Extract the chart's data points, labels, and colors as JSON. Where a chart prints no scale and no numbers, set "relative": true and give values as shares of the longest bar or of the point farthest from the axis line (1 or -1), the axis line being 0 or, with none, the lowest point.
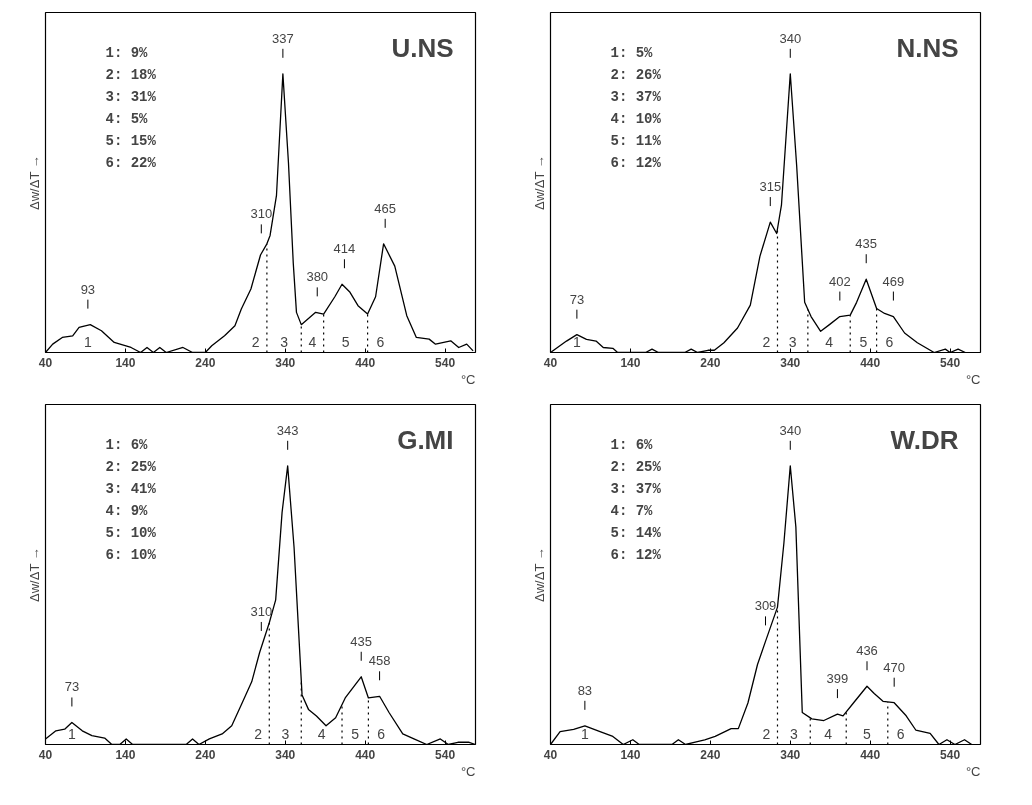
{
  "chart_data": [
    {
      "type": "line",
      "title": "U.NS",
      "xlabel": "°C",
      "ylabel": "Δw/ΔT →",
      "relative": true,
      "xlim": [
        40,
        578
      ],
      "xticks": [
        40,
        140,
        240,
        340,
        440,
        540
      ],
      "tick_labels": "x",
      "grid": false,
      "marker": "none",
      "line_style": "solid",
      "series": [
        {
          "color": "#000000",
          "x": [
            40,
            49,
            61,
            74,
            82,
            96,
            110,
            126,
            147,
            159,
            167,
            175,
            183,
            191,
            212,
            224,
            240,
            248,
            264,
            277,
            285,
            297,
            309,
            317,
            321,
            329,
            337,
            344,
            350,
            354,
            360,
            378,
            388,
            402,
            411,
            421,
            431,
            443,
            453,
            463,
            477,
            492,
            504,
            520,
            528,
            547,
            557,
            567,
            575
          ],
          "values": [
            0,
            0.03,
            0.054,
            0.06,
            0.09,
            0.1,
            0.078,
            0.036,
            0.018,
            0,
            0.018,
            0,
            0.018,
            0,
            0.018,
            0,
            0,
            0.024,
            0.06,
            0.096,
            0.156,
            0.228,
            0.35,
            0.39,
            0.42,
            0.564,
            1.0,
            0.68,
            0.32,
            0.144,
            0.1,
            0.144,
            0.138,
            0.2,
            0.245,
            0.216,
            0.168,
            0.138,
            0.2,
            0.39,
            0.31,
            0.132,
            0.054,
            0.048,
            0.03,
            0.042,
            0.018,
            0.03,
            0.006
          ]
        }
      ],
      "ref_lines": [
        {
          "axis": "x",
          "value": 317,
          "line_style": "dotted"
        },
        {
          "axis": "x",
          "value": 360,
          "line_style": "dotted"
        },
        {
          "axis": "x",
          "value": 388,
          "line_style": "dotted"
        },
        {
          "axis": "x",
          "value": 443,
          "line_style": "dotted"
        }
      ],
      "annotations": [
        "1:   9%",
        "2:  18%",
        "3:  31%",
        "4:   5%",
        "5:  15%",
        "6:  22%",
        {
          "text": "93",
          "x": 93,
          "y": 0.1
        },
        {
          "text": "310",
          "x": 310,
          "y": 0.37
        },
        {
          "text": "337",
          "x": 337,
          "y": 1.0
        },
        {
          "text": "380",
          "x": 380,
          "y": 0.144
        },
        {
          "text": "414",
          "x": 414,
          "y": 0.245
        },
        {
          "text": "465",
          "x": 465,
          "y": 0.39
        },
        "1",
        "2",
        "3",
        "4",
        "5",
        "6"
      ]
    },
    {
      "type": "line",
      "title": "N.NS",
      "xlabel": "°C",
      "ylabel": "Δw/ΔT →",
      "relative": true,
      "xlim": [
        40,
        578
      ],
      "xticks": [
        40,
        140,
        240,
        340,
        440,
        540
      ],
      "tick_labels": "x",
      "grid": false,
      "marker": "none",
      "line_style": "solid",
      "series": [
        {
          "color": "#000000",
          "x": [
            40,
            60,
            73,
            85,
            97,
            106,
            118,
            124,
            159,
            167,
            175,
            208,
            216,
            224,
            237,
            245,
            257,
            274,
            290,
            302,
            315,
            323,
            329,
            340,
            348,
            358,
            366,
            378,
            389,
            402,
            415,
            423,
            435,
            448,
            458,
            469,
            483,
            499,
            520,
            534,
            540,
            550,
            559
          ],
          "values": [
            0,
            0.041,
            0.064,
            0.047,
            0.041,
            0.018,
            0.015,
            0,
            0,
            0.012,
            0,
            0,
            0.012,
            0,
            0.008,
            0.008,
            0.035,
            0.088,
            0.17,
            0.345,
            0.468,
            0.427,
            0.53,
            1.0,
            0.67,
            0.18,
            0.129,
            0.076,
            0.1,
            0.129,
            0.134,
            0.18,
            0.263,
            0.158,
            0.14,
            0.129,
            0.07,
            0.035,
            0,
            0.012,
            0,
            0.012,
            0
          ]
        }
      ],
      "ref_lines": [
        {
          "axis": "x",
          "value": 324,
          "line_style": "dotted"
        },
        {
          "axis": "x",
          "value": 362,
          "line_style": "dotted"
        },
        {
          "axis": "x",
          "value": 415,
          "line_style": "dotted"
        },
        {
          "axis": "x",
          "value": 448,
          "line_style": "dotted"
        }
      ],
      "annotations": [
        "1:   5%",
        "2:  26%",
        "3:  37%",
        "4:  10%",
        "5:  11%",
        "6:  12%",
        {
          "text": "73",
          "x": 73,
          "y": 0.064
        },
        {
          "text": "315",
          "x": 315,
          "y": 0.468
        },
        {
          "text": "340",
          "x": 340,
          "y": 1.0
        },
        {
          "text": "402",
          "x": 402,
          "y": 0.129
        },
        {
          "text": "435",
          "x": 435,
          "y": 0.263
        },
        {
          "text": "469",
          "x": 469,
          "y": 0.129
        },
        "1",
        "2",
        "3",
        "4",
        "5",
        "6"
      ]
    },
    {
      "type": "line",
      "title": "G.MI",
      "xlabel": "°C",
      "ylabel": "Δw/ΔT →",
      "relative": true,
      "xlim": [
        40,
        578
      ],
      "xticks": [
        40,
        140,
        240,
        340,
        440,
        540
      ],
      "tick_labels": "x",
      "grid": false,
      "marker": "none",
      "line_style": "solid",
      "series": [
        {
          "color": "#000000",
          "x": [
            40,
            53,
            64,
            73,
            86,
            98,
            114,
            123,
            133,
            141,
            149,
            216,
            224,
            232,
            245,
            261,
            273,
            285,
            298,
            308,
            320,
            328,
            336,
            343,
            351,
            361,
            369,
            379,
            391,
            403,
            415,
            435,
            444,
            458,
            470,
            487,
            501,
            517,
            534,
            544,
            556,
            570,
            578
          ],
          "values": [
            0.02,
            0.049,
            0.055,
            0.079,
            0.049,
            0.032,
            0.023,
            0,
            0,
            0.02,
            0,
            0,
            0.02,
            0,
            0.02,
            0.038,
            0.067,
            0.143,
            0.225,
            0.331,
            0.437,
            0.519,
            0.833,
            1.0,
            0.707,
            0.178,
            0.126,
            0.102,
            0.067,
            0.096,
            0.167,
            0.243,
            0.167,
            0.173,
            0.114,
            0.038,
            0.02,
            0,
            0.02,
            0,
            0.008,
            0.008,
            0
          ]
        }
      ],
      "ref_lines": [
        {
          "axis": "x",
          "value": 320,
          "line_style": "dotted"
        },
        {
          "axis": "x",
          "value": 360,
          "line_style": "dotted"
        },
        {
          "axis": "x",
          "value": 411,
          "line_style": "dotted"
        },
        {
          "axis": "x",
          "value": 444,
          "line_style": "dotted"
        }
      ],
      "annotations": [
        "1:   6%",
        "2:  25%",
        "3:  41%",
        "4:   9%",
        "5:  10%",
        "6:  10%",
        {
          "text": "73",
          "x": 73,
          "y": 0.079
        },
        {
          "text": "310",
          "x": 310,
          "y": 0.35
        },
        {
          "text": "343",
          "x": 343,
          "y": 1.0
        },
        {
          "text": "435",
          "x": 435,
          "y": 0.243
        },
        {
          "text": "458",
          "x": 458,
          "y": 0.173
        },
        "1",
        "2",
        "3",
        "4",
        "5",
        "6"
      ]
    },
    {
      "type": "line",
      "title": "W.DR",
      "xlabel": "°C",
      "ylabel": "Δw/ΔT →",
      "relative": true,
      "xlim": [
        40,
        578
      ],
      "xticks": [
        40,
        140,
        240,
        340,
        440,
        540
      ],
      "tick_labels": "x",
      "grid": false,
      "marker": "none",
      "line_style": "solid",
      "series": [
        {
          "color": "#000000",
          "x": [
            40,
            52,
            69,
            83,
            102,
            118,
            131,
            143,
            151,
            192,
            200,
            209,
            225,
            233,
            246,
            266,
            275,
            287,
            299,
            309,
            324,
            332,
            340,
            347,
            355,
            367,
            382,
            399,
            406,
            419,
            436,
            445,
            456,
            470,
            485,
            497,
            515,
            526,
            536,
            546,
            558,
            567
          ],
          "values": [
            0,
            0.046,
            0.054,
            0.067,
            0.046,
            0.029,
            0,
            0.017,
            0,
            0,
            0.017,
            0,
            0.011,
            0.017,
            0.029,
            0.057,
            0.057,
            0.149,
            0.287,
            0.37,
            0.493,
            0.722,
            1.0,
            0.78,
            0.115,
            0.092,
            0.086,
            0.109,
            0.103,
            0.149,
            0.209,
            0.183,
            0.155,
            0.15,
            0.103,
            0.052,
            0.04,
            0,
            0.017,
            0,
            0.017,
            0
          ]
        }
      ],
      "ref_lines": [
        {
          "axis": "x",
          "value": 324,
          "line_style": "dotted"
        },
        {
          "axis": "x",
          "value": 365,
          "line_style": "dotted"
        },
        {
          "axis": "x",
          "value": 410,
          "line_style": "dotted"
        },
        {
          "axis": "x",
          "value": 462,
          "line_style": "dotted"
        }
      ],
      "annotations": [
        "1:   6%",
        "2:  25%",
        "3:  37%",
        "4:   7%",
        "5:  14%",
        "6:  12%",
        {
          "text": "83",
          "x": 83,
          "y": 0.067
        },
        {
          "text": "309",
          "x": 309,
          "y": 0.37
        },
        {
          "text": "340",
          "x": 340,
          "y": 1.0
        },
        {
          "text": "399",
          "x": 399,
          "y": 0.109
        },
        {
          "text": "436",
          "x": 436,
          "y": 0.209
        },
        {
          "text": "470",
          "x": 470,
          "y": 0.15
        },
        "1",
        "2",
        "3",
        "4",
        "5",
        "6"
      ]
    }
  ]
}
